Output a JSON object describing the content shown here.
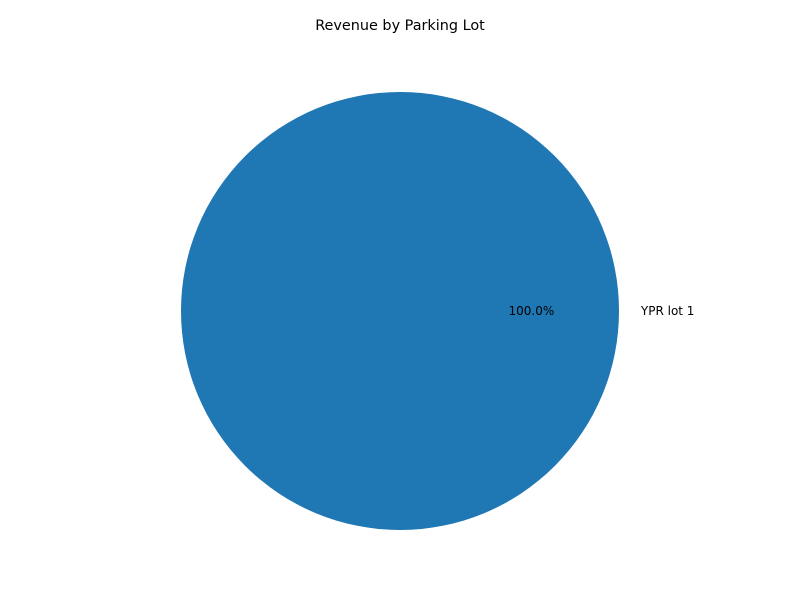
{
  "chart_data": {
    "type": "pie",
    "title": "Revenue by Parking Lot",
    "slices": [
      {
        "label": "YPR lot 1",
        "value": 100.0,
        "percent_label": "100.0%",
        "color": "#1f77b4"
      }
    ]
  }
}
